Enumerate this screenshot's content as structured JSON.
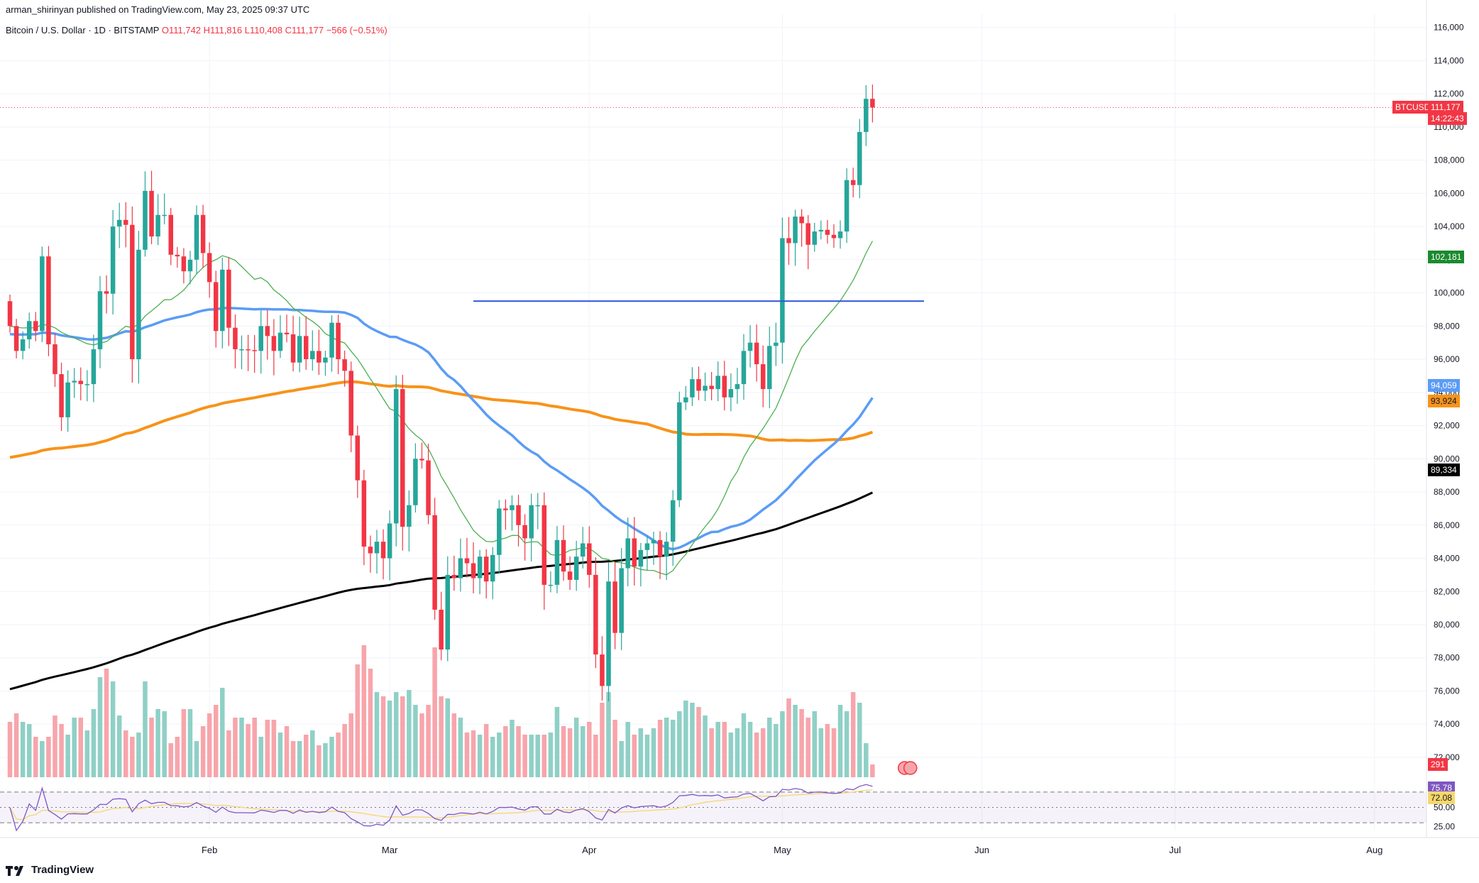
{
  "header": {
    "published": "arman_shirinyan published on TradingView.com, May 23, 2025 09:37 UTC",
    "symbol": "Bitcoin / U.S. Dollar · 1D · BITSTAMP",
    "ohlc": {
      "o": "O111,742",
      "h": "H111,816",
      "l": "L110,408",
      "c": "C111,177",
      "chg": "−566 (−0.51%)"
    }
  },
  "brand": "TradingView",
  "colors": {
    "up": "#26a69a",
    "down": "#f23645",
    "upVol": "#8fd0c6",
    "downVol": "#f7a5ab",
    "ma_blue": "#5b9cf6",
    "ma_orange": "#f7931a",
    "ma_black": "#000000",
    "ma_green": "#4caf50",
    "resistance": "#2b54d9",
    "rsi": "#7e57c2",
    "rsi_ma": "#f5d76e"
  },
  "price_labels": {
    "last_symbol": "BTCUSD",
    "last_price": "111,177",
    "countdown": "14:22:43",
    "ma_green": "102,181",
    "ma_blue": "94,059",
    "ma_orange": "93,924",
    "ma_black": "89,334",
    "volume": "291",
    "rsi": "75.78",
    "rsi_ma": "72.08"
  },
  "chart_data": {
    "type": "candlestick",
    "title": "Bitcoin / U.S. Dollar · 1D · BITSTAMP",
    "x_labels": [
      "Feb",
      "Mar",
      "Apr",
      "May",
      "Jun",
      "Jul",
      "Aug"
    ],
    "x_label_day_index": [
      31,
      59,
      90,
      120,
      151,
      181,
      212
    ],
    "y_ticks": [
      72000,
      74000,
      76000,
      78000,
      80000,
      82000,
      84000,
      86000,
      88000,
      90000,
      92000,
      94000,
      96000,
      98000,
      100000,
      102000,
      104000,
      106000,
      108000,
      110000,
      112000,
      114000,
      116000
    ],
    "ylim": [
      70800,
      116800
    ],
    "start_date": "2025-01-01",
    "closes": [
      98000,
      96500,
      97200,
      98300,
      97700,
      102200,
      96900,
      95100,
      92500,
      94600,
      94700,
      94500,
      94500,
      96600,
      100100,
      99950,
      104000,
      104400,
      104100,
      96000,
      102600,
      106150,
      103400,
      104700,
      104700,
      102300,
      102200,
      101300,
      102000,
      104700,
      102400,
      100650,
      97700,
      101400,
      97900,
      96600,
      96600,
      96550,
      96500,
      98000,
      97400,
      96500,
      97600,
      97500,
      95800,
      97400,
      96000,
      96500,
      95800,
      96100,
      98200,
      96000,
      95300,
      91400,
      88700,
      84700,
      84300,
      85000,
      84000,
      86100,
      94200,
      85900,
      87200,
      90000,
      89900,
      86600,
      80900,
      78500,
      83000,
      82800,
      84000,
      83700,
      82800,
      84100,
      82600,
      84200,
      87000,
      86900,
      87200,
      86000,
      85200,
      87200,
      87200,
      82400,
      82400,
      85100,
      83200,
      82700,
      84100,
      84900,
      83000,
      78200,
      76300,
      82600,
      79500,
      83400,
      85200,
      83500,
      84500,
      84900,
      85100,
      84100,
      85000,
      87500,
      93400,
      93700,
      94800,
      94100,
      94400,
      94200,
      95000,
      93700,
      94200,
      94500,
      96500,
      97000,
      95700,
      94200,
      96800,
      97000,
      103300,
      103000,
      104600,
      104200,
      102900,
      103700,
      103800,
      103500,
      103300,
      103700,
      106800,
      106500,
      109700,
      111700,
      111177
    ]
  },
  "volume_data": {
    "values": [
      26,
      30,
      26,
      25,
      19,
      17,
      19,
      29,
      25,
      20,
      28,
      28,
      22,
      32,
      47,
      51,
      45,
      29,
      22,
      19,
      21,
      45,
      28,
      32,
      31,
      16,
      19,
      32,
      32,
      17,
      24,
      30,
      34,
      42,
      22,
      28,
      28,
      25,
      28,
      19,
      27,
      27,
      21,
      24,
      17,
      17,
      20,
      22,
      15,
      16,
      19,
      21,
      25,
      30,
      53,
      62,
      51,
      40,
      38,
      36,
      40,
      38,
      41,
      34,
      30,
      34,
      61,
      38,
      37,
      30,
      28,
      21,
      22,
      20,
      25,
      19,
      21,
      24,
      27,
      24,
      20,
      20,
      20,
      20,
      21,
      33,
      24,
      23,
      28,
      24,
      26,
      20,
      35,
      40,
      27,
      17,
      26,
      20,
      23,
      20,
      23,
      27,
      28,
      27,
      31,
      36,
      35,
      33,
      29,
      23,
      26,
      26,
      21,
      23,
      30,
      26,
      21,
      23,
      28,
      25,
      31,
      37,
      34,
      32,
      28,
      31,
      23,
      25,
      23,
      34,
      31,
      40,
      35,
      16,
      6
    ],
    "max": 100
  },
  "rsi_data": {
    "levels": [
      70,
      50,
      30
    ],
    "tick_labels": [
      "75.78",
      "72.08",
      "50.00",
      "25.00"
    ]
  },
  "resistance_line": {
    "price": 99500,
    "from_day": 72,
    "to_day": 142
  }
}
